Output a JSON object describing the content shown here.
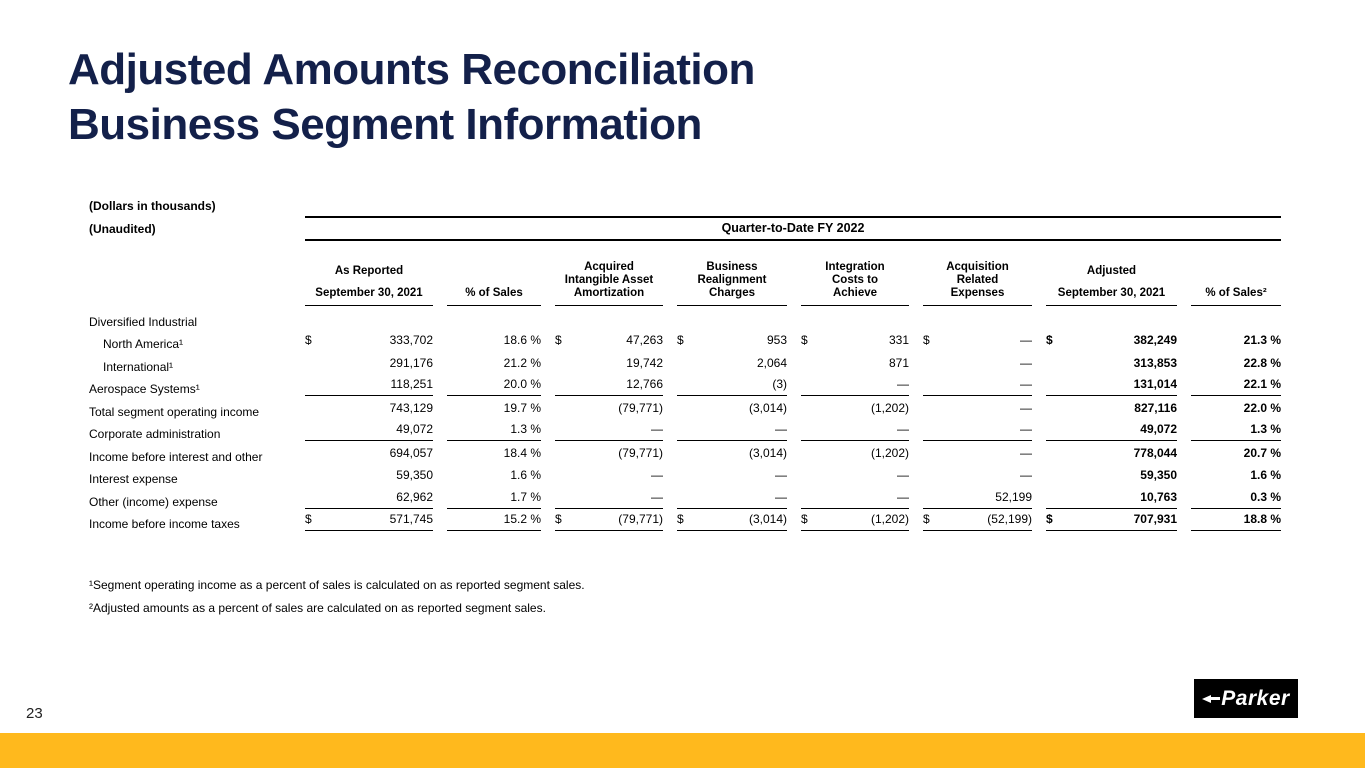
{
  "slide": {
    "title_line1": "Adjusted Amounts Reconciliation",
    "title_line2": "Business Segment Information",
    "page_number": "23",
    "logo_text": "Parker",
    "title_color": "#13204a",
    "accent_bar_color": "#ffb91d"
  },
  "table": {
    "unit_note": "(Dollars in thousands)",
    "audit_note": "(Unaudited)",
    "period_header": "Quarter-to-Date FY 2022",
    "columns": [
      {
        "lines": [
          "As Reported",
          "September 30, 2021"
        ]
      },
      {
        "lines": [
          "% of Sales"
        ]
      },
      {
        "lines": [
          "Acquired",
          "Intangible Asset",
          "Amortization"
        ]
      },
      {
        "lines": [
          "Business",
          "Realignment",
          "Charges"
        ]
      },
      {
        "lines": [
          "Integration",
          "Costs to",
          "Achieve"
        ]
      },
      {
        "lines": [
          "Acquisition",
          "Related",
          "Expenses"
        ]
      },
      {
        "lines": [
          "Adjusted",
          "September 30, 2021"
        ]
      },
      {
        "lines": [
          "% of Sales²"
        ]
      }
    ],
    "rows": [
      {
        "label": "Diversified Industrial",
        "indent": false,
        "rule": false,
        "cells": []
      },
      {
        "label": "North America¹",
        "indent": true,
        "rule": false,
        "cells": [
          [
            "$",
            "333,702"
          ],
          [
            "",
            "18.6 %"
          ],
          [
            "$",
            "47,263"
          ],
          [
            "$",
            "953"
          ],
          [
            "$",
            "331"
          ],
          [
            "$",
            "—"
          ],
          [
            "$",
            "382,249"
          ],
          [
            "",
            "21.3 %"
          ]
        ]
      },
      {
        "label": "International¹",
        "indent": true,
        "rule": false,
        "cells": [
          [
            "",
            "291,176"
          ],
          [
            "",
            "21.2 %"
          ],
          [
            "",
            "19,742"
          ],
          [
            "",
            "2,064"
          ],
          [
            "",
            "871"
          ],
          [
            "",
            "—"
          ],
          [
            "",
            "313,853"
          ],
          [
            "",
            "22.8 %"
          ]
        ]
      },
      {
        "label": "Aerospace Systems¹",
        "indent": false,
        "rule": true,
        "cells": [
          [
            "",
            "118,251"
          ],
          [
            "",
            "20.0 %"
          ],
          [
            "",
            "12,766"
          ],
          [
            "",
            "(3)"
          ],
          [
            "",
            "—"
          ],
          [
            "",
            "—"
          ],
          [
            "",
            "131,014"
          ],
          [
            "",
            "22.1 %"
          ]
        ]
      },
      {
        "label": "Total segment operating income",
        "indent": false,
        "rule": false,
        "cells": [
          [
            "",
            "743,129"
          ],
          [
            "",
            "19.7 %"
          ],
          [
            "",
            "(79,771)"
          ],
          [
            "",
            "(3,014)"
          ],
          [
            "",
            "(1,202)"
          ],
          [
            "",
            "—"
          ],
          [
            "",
            "827,116"
          ],
          [
            "",
            "22.0 %"
          ]
        ]
      },
      {
        "label": "Corporate administration",
        "indent": false,
        "rule": true,
        "cells": [
          [
            "",
            "49,072"
          ],
          [
            "",
            "1.3 %"
          ],
          [
            "",
            "—"
          ],
          [
            "",
            "—"
          ],
          [
            "",
            "—"
          ],
          [
            "",
            "—"
          ],
          [
            "",
            "49,072"
          ],
          [
            "",
            "1.3 %"
          ]
        ]
      },
      {
        "label": "Income before interest and other",
        "indent": false,
        "rule": false,
        "cells": [
          [
            "",
            "694,057"
          ],
          [
            "",
            "18.4 %"
          ],
          [
            "",
            "(79,771)"
          ],
          [
            "",
            "(3,014)"
          ],
          [
            "",
            "(1,202)"
          ],
          [
            "",
            "—"
          ],
          [
            "",
            "778,044"
          ],
          [
            "",
            "20.7 %"
          ]
        ]
      },
      {
        "label": "Interest expense",
        "indent": false,
        "rule": false,
        "cells": [
          [
            "",
            "59,350"
          ],
          [
            "",
            "1.6 %"
          ],
          [
            "",
            "—"
          ],
          [
            "",
            "—"
          ],
          [
            "",
            "—"
          ],
          [
            "",
            "—"
          ],
          [
            "",
            "59,350"
          ],
          [
            "",
            "1.6 %"
          ]
        ]
      },
      {
        "label": "Other (income) expense",
        "indent": false,
        "rule": true,
        "cells": [
          [
            "",
            "62,962"
          ],
          [
            "",
            "1.7 %"
          ],
          [
            "",
            "—"
          ],
          [
            "",
            "—"
          ],
          [
            "",
            "—"
          ],
          [
            "",
            "52,199"
          ],
          [
            "",
            "10,763"
          ],
          [
            "",
            "0.3 %"
          ]
        ]
      },
      {
        "label": "Income before income taxes",
        "indent": false,
        "rule": true,
        "cells": [
          [
            "$",
            "571,745"
          ],
          [
            "",
            "15.2 %"
          ],
          [
            "$",
            "(79,771)"
          ],
          [
            "$",
            "(3,014)"
          ],
          [
            "$",
            "(1,202)"
          ],
          [
            "$",
            "(52,199)"
          ],
          [
            "$",
            "707,931"
          ],
          [
            "",
            "18.8 %"
          ]
        ]
      }
    ]
  },
  "footnotes": [
    "¹Segment operating income as a percent of sales is calculated on as reported segment sales.",
    "²Adjusted amounts as a percent of sales are calculated on as reported segment sales."
  ]
}
